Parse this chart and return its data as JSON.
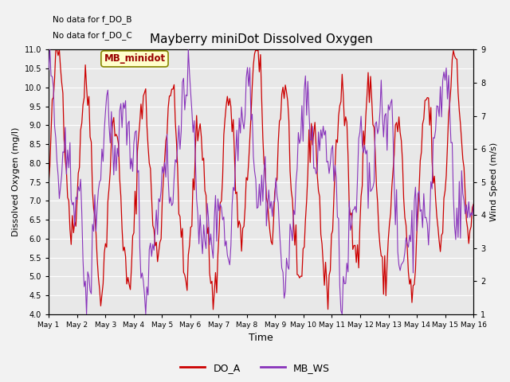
{
  "title": "Mayberry miniDot Dissolved Oxygen",
  "xlabel": "Time",
  "ylabel_left": "Dissolved Oxygen (mg/l)",
  "ylabel_right": "Wind Speed (m/s)",
  "top_text_1": "No data for f_DO_B",
  "top_text_2": "No data for f_DO_C",
  "legend_box_text": "MB_minidot",
  "ylim_left": [
    4.0,
    11.0
  ],
  "ylim_right": [
    1.0,
    9.0
  ],
  "yticks_left": [
    4.0,
    4.5,
    5.0,
    5.5,
    6.0,
    6.5,
    7.0,
    7.5,
    8.0,
    8.5,
    9.0,
    9.5,
    10.0,
    10.5,
    11.0
  ],
  "yticks_right": [
    1.0,
    2.0,
    3.0,
    4.0,
    5.0,
    6.0,
    7.0,
    8.0,
    9.0
  ],
  "xtick_labels": [
    "May 1",
    "May 2",
    "May 3",
    "May 4",
    "May 5",
    "May 6",
    "May 7",
    "May 8",
    "May 9",
    "May 10",
    "May 11",
    "May 12",
    "May 13",
    "May 14",
    "May 15",
    "May 16"
  ],
  "color_do": "#cc0000",
  "color_ws": "#8833bb",
  "fig_facecolor": "#f2f2f2",
  "plot_facecolor": "#e8e8e8",
  "legend_labels": [
    "DO_A",
    "MB_WS"
  ],
  "seed": 42
}
